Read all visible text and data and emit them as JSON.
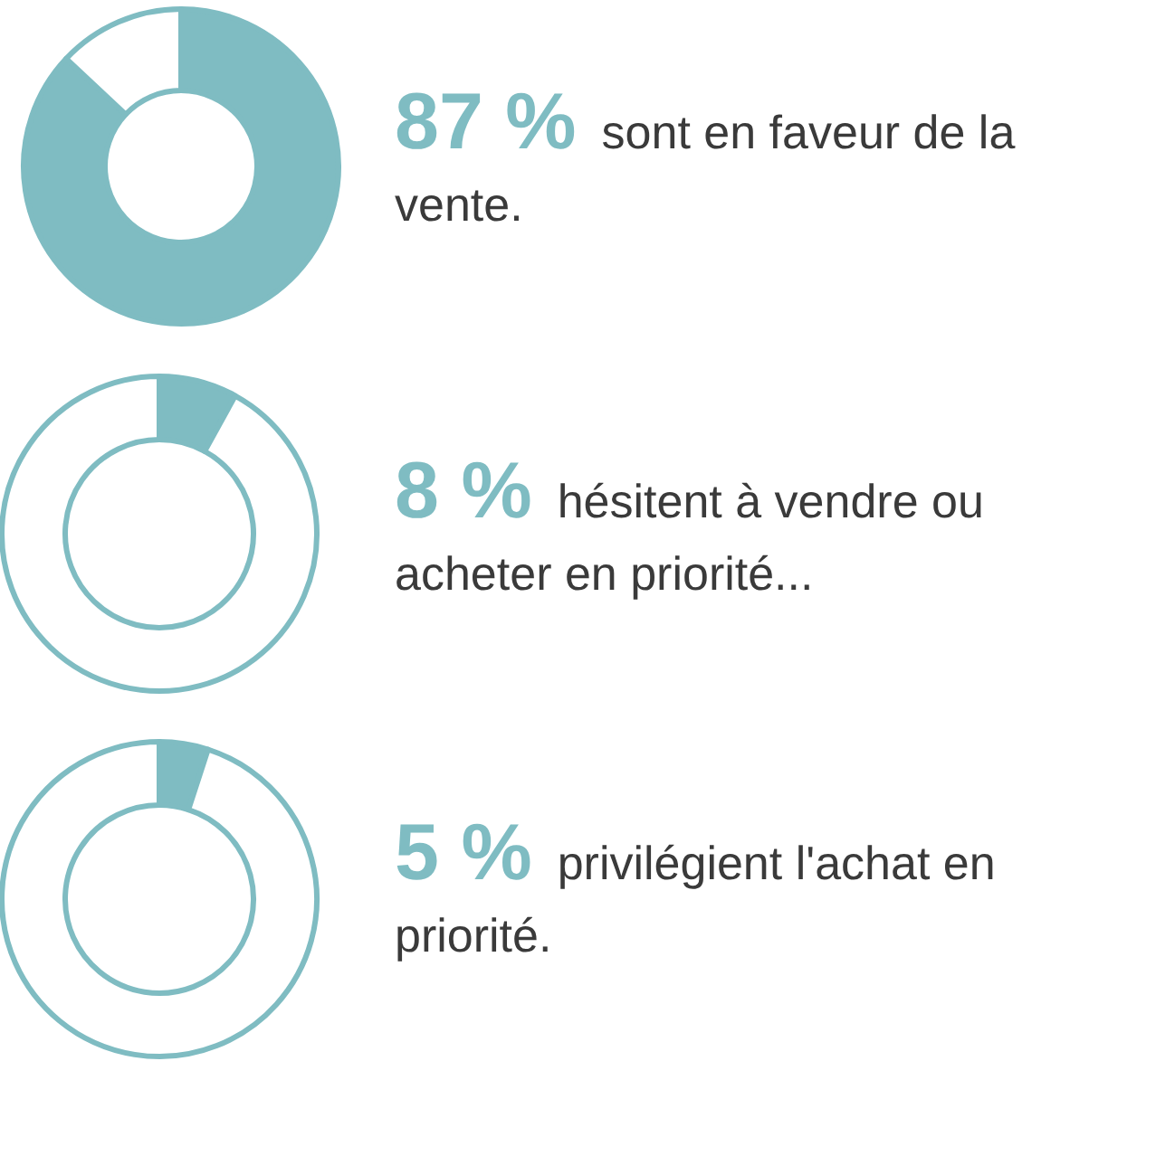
{
  "chart_data": [
    {
      "type": "donut",
      "title": "87 %",
      "categories": [
        null,
        null
      ],
      "values": [
        87,
        13
      ],
      "colors": [
        "#7fbcc2",
        "#ffffff"
      ],
      "annotations": [
        "sont  en faveur de la vente."
      ]
    },
    {
      "type": "donut",
      "title": "8 %",
      "categories": [
        null,
        null
      ],
      "values": [
        8,
        92
      ],
      "colors": [
        "#7fbcc2",
        "#ffffff"
      ],
      "annotations": [
        "hésitent à vendre ou acheter en priorité..."
      ]
    },
    {
      "type": "donut",
      "title": "5 %",
      "categories": [
        null,
        null
      ],
      "values": [
        5,
        95
      ],
      "colors": [
        "#7fbcc2",
        "#ffffff"
      ],
      "annotations": [
        "privilégient l'achat en priorité."
      ]
    }
  ]
}
